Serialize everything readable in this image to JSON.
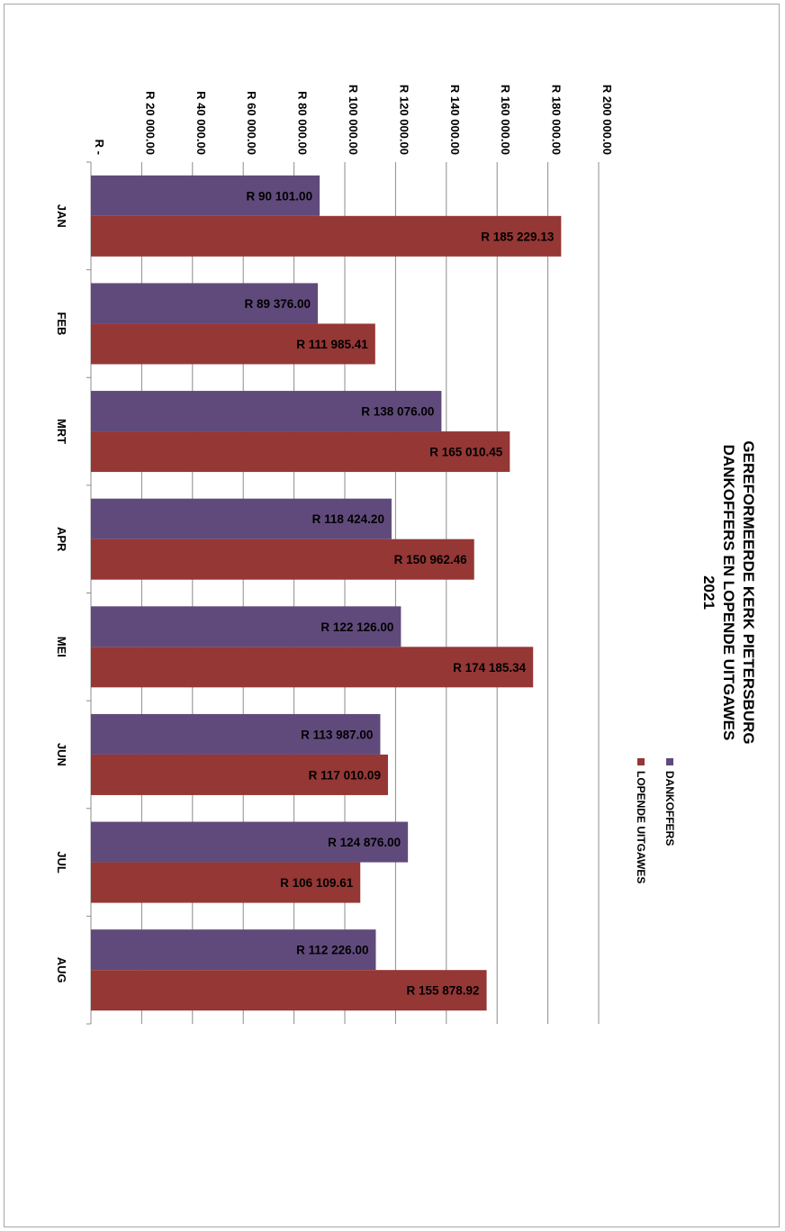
{
  "chart_data": {
    "type": "bar",
    "orientation": "horizontal-rotated",
    "title_lines": [
      "GEREFORMEERDE KERK PIETERSBURG",
      "DANKOFFERS EN LOPENDE UITGAWES",
      "2021"
    ],
    "categories": [
      "JAN",
      "FEB",
      "MRT",
      "APR",
      "MEI",
      "JUN",
      "JUL",
      "AUG"
    ],
    "series": [
      {
        "name": "DANKOFFERS",
        "color": "#604a7b",
        "values": [
          90101.0,
          89376.0,
          138076.0,
          118424.2,
          122126.0,
          113987.0,
          124876.0,
          112226.0
        ],
        "labels": [
          "R 90 101.00",
          "R 89 376.00",
          "R 138 076.00",
          "R 118 424.20",
          "R 122 126.00",
          "R 113 987.00",
          "R 124 876.00",
          "R 112 226.00"
        ]
      },
      {
        "name": "LOPENDE UITGAWES",
        "color": "#953735",
        "values": [
          185229.13,
          111985.41,
          165010.45,
          150962.46,
          174185.34,
          117010.09,
          106109.61,
          155878.92
        ],
        "labels": [
          "R 185 229.13",
          "R 111 985.41",
          "R 165 010.45",
          "R 150 962.46",
          "R 174 185.34",
          "R 117 010.09",
          "R 106 109.61",
          "R 155 878.92"
        ]
      }
    ],
    "value_axis": {
      "min": 0,
      "max": 200000,
      "step": 20000,
      "tick_labels": [
        "R -",
        "R 20 000.00",
        "R 40 000.00",
        "R 60 000.00",
        "R 80 000.00",
        "R 100 000.00",
        "R 120 000.00",
        "R 140 000.00",
        "R 160 000.00",
        "R 180 000.00",
        "R 200 000.00"
      ]
    },
    "grid": true,
    "legend_position": "right"
  }
}
